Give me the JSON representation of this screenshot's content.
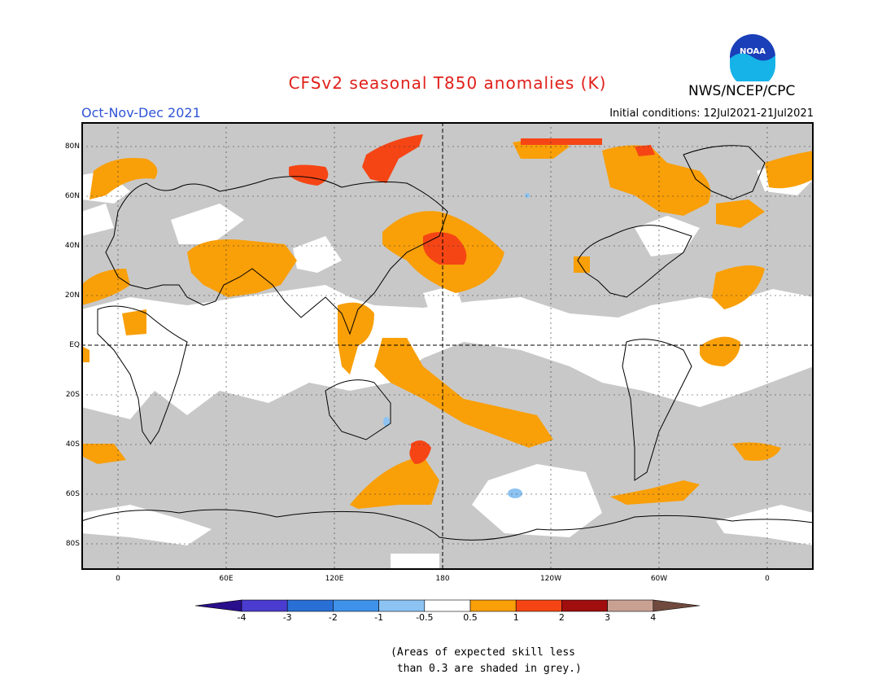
{
  "title": "CFSv2 seasonal T850 anomalies (K)",
  "season": "Oct-Nov-Dec 2021",
  "initial_conditions": "Initial conditions: 12Jul2021-21Jul2021",
  "agency": "NWS/NCEP/CPC",
  "logo_text": "NOAA",
  "latitude_labels": [
    "80N",
    "60N",
    "40N",
    "20N",
    "EQ",
    "20S",
    "40S",
    "60S",
    "80S"
  ],
  "longitude_labels": [
    "0",
    "60E",
    "120E",
    "180",
    "120W",
    "60W",
    "0"
  ],
  "colorbar": {
    "labels": [
      "-4",
      "-3",
      "-2",
      "-1",
      "-0.5",
      "0.5",
      "1",
      "2",
      "3",
      "4"
    ],
    "colors": [
      "#2a0f8c",
      "#4a3ccf",
      "#2a6fd6",
      "#3f92ea",
      "#8cc3f2",
      "#ffffff",
      "#f99f08",
      "#f54515",
      "#a00e0e",
      "#c9a193",
      "#704a3e"
    ]
  },
  "skill_note": "(Areas of expected skill less\n than 0.3 are shaded in grey.)",
  "colors": {
    "skill_grey": "#c8c8c8",
    "anomaly_05_1": "#f99f08",
    "anomaly_1_2": "#f54515",
    "cool_anomaly": "#8cc3f2"
  }
}
